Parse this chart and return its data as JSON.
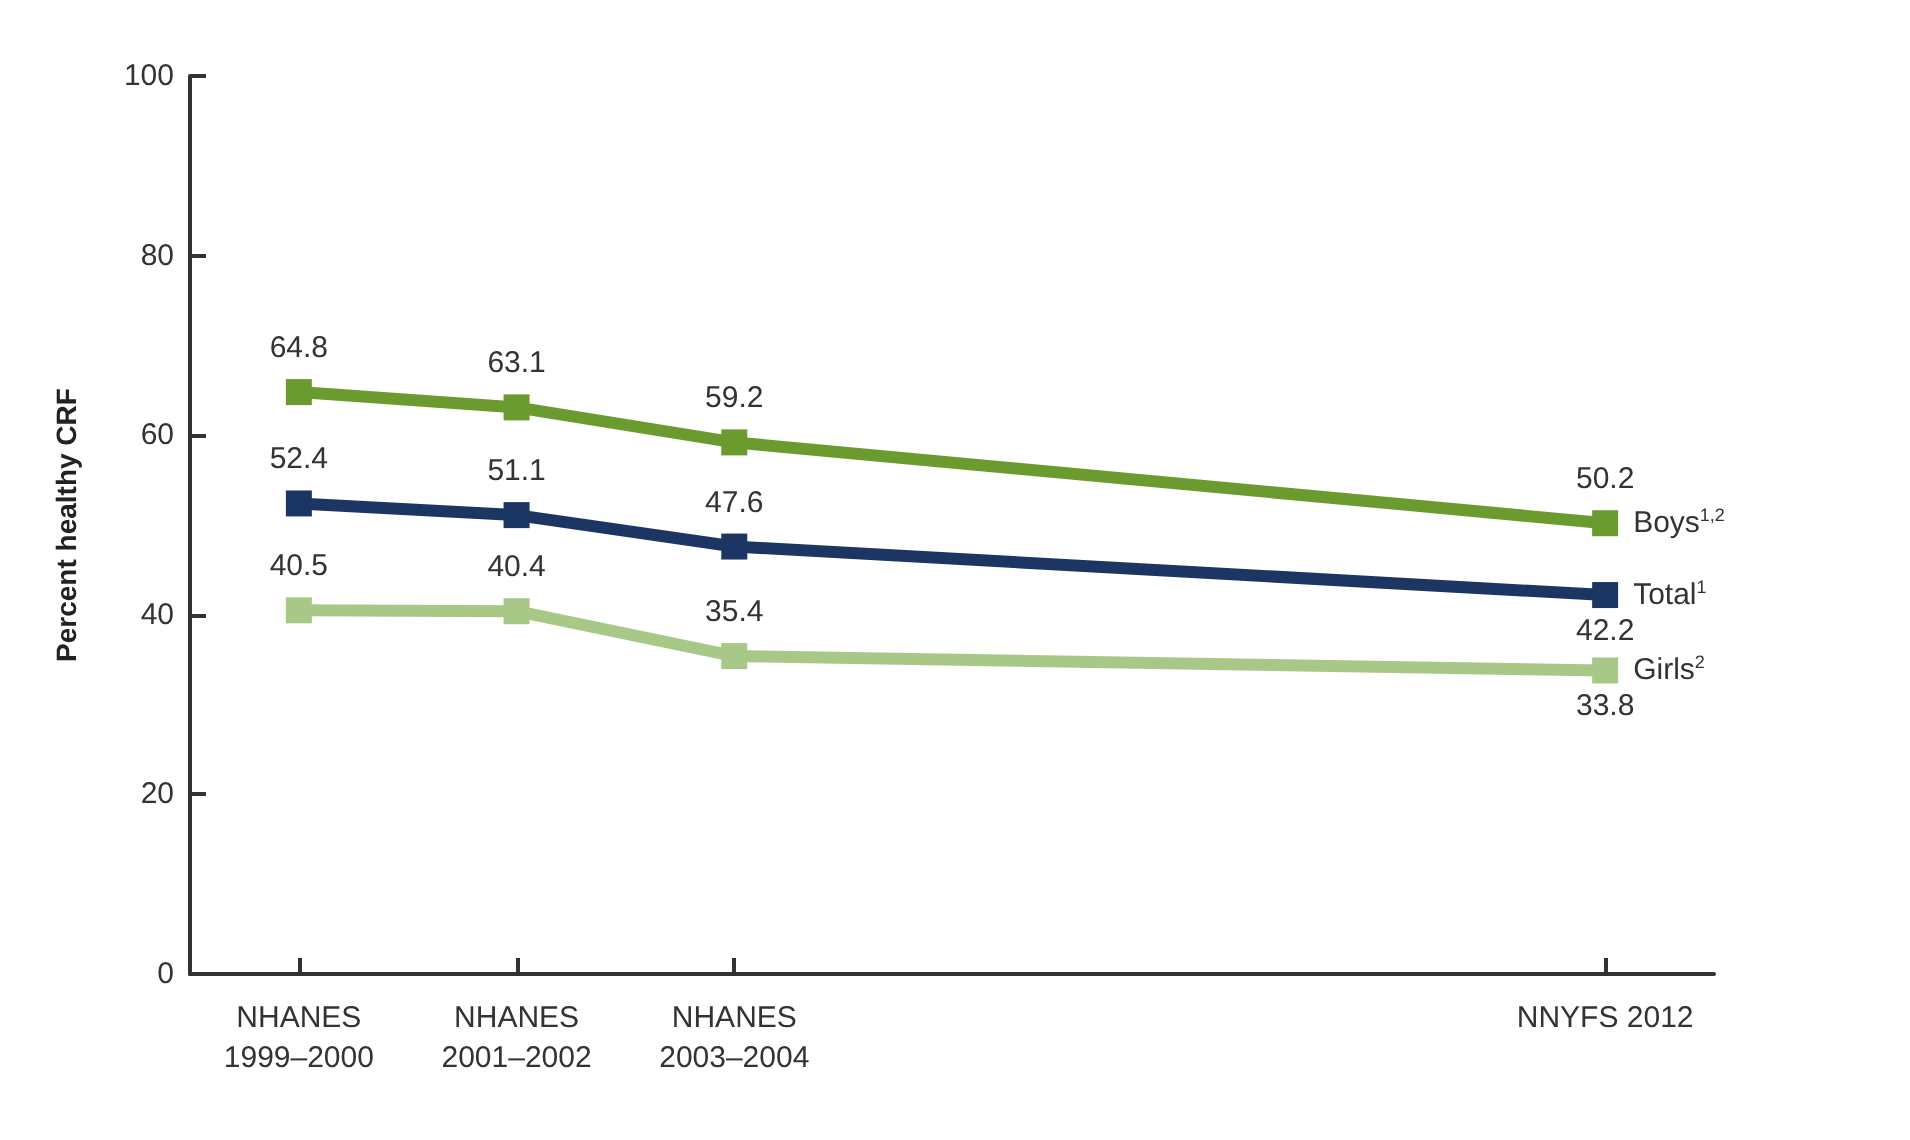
{
  "chart_data": {
    "type": "line",
    "ylabel": "Percent healthy CRF",
    "categories": [
      "NHANES\n1999–2000",
      "NHANES\n2001–2002",
      "NHANES\n2003–2004",
      null,
      null,
      null,
      "NNYFS 2012"
    ],
    "ylim": [
      0,
      100
    ],
    "yticks": [
      0,
      20,
      40,
      60,
      80,
      100
    ],
    "series": [
      {
        "name": "Boys$^{1,2}$",
        "color": "#6b9b2f",
        "values": [
          64.8,
          63.1,
          59.2,
          null,
          null,
          null,
          50.2
        ]
      },
      {
        "name": "Total$^{1}$",
        "color": "#1c3664",
        "values": [
          52.4,
          51.1,
          47.6,
          null,
          null,
          null,
          42.2
        ]
      },
      {
        "name": "Girls$^{2}$",
        "color": "#a8c888",
        "values": [
          40.5,
          40.4,
          35.4,
          null,
          null,
          null,
          33.8
        ]
      }
    ],
    "data_labels": true,
    "marker": "square",
    "line_style": "solid",
    "grid": false,
    "legend": false
  }
}
